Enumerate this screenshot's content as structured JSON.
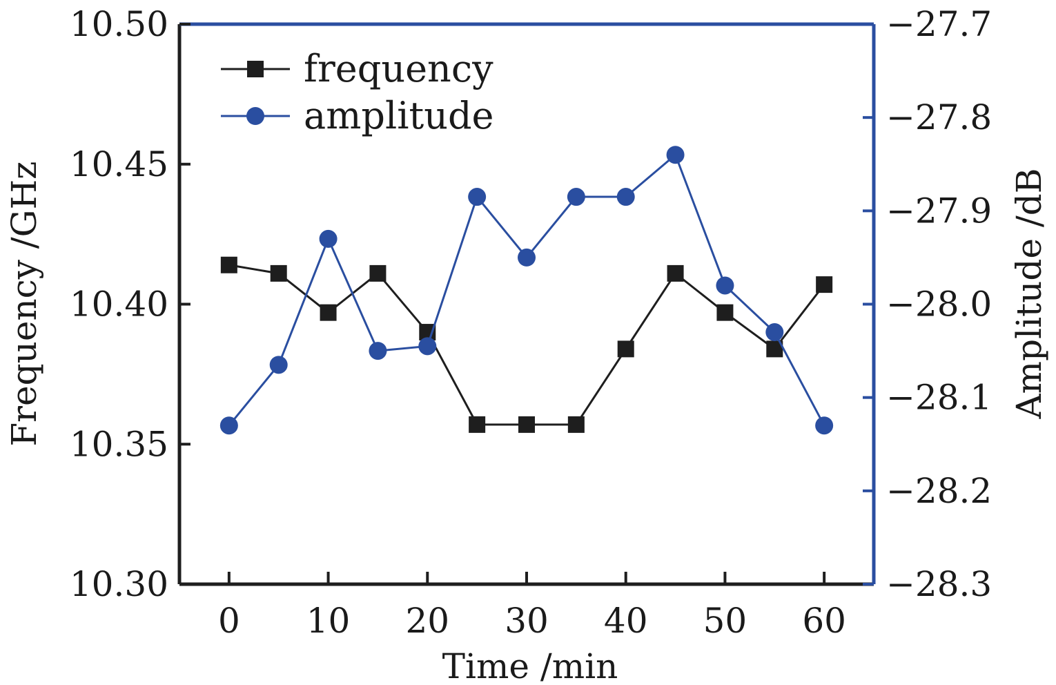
{
  "chart_data": {
    "type": "line",
    "title": "",
    "xlabel": "Time /min",
    "ylabel_left": "Frequency /GHz",
    "ylabel_right": "Amplitude /dB",
    "x": [
      0,
      5,
      10,
      15,
      20,
      25,
      30,
      35,
      40,
      45,
      50,
      55,
      60
    ],
    "x_ticks": [
      0,
      10,
      20,
      30,
      40,
      50,
      60
    ],
    "x_tick_labels": [
      "0",
      "10",
      "20",
      "30",
      "40",
      "50",
      "60"
    ],
    "xlim": [
      -5,
      65
    ],
    "ylim_left": [
      10.3,
      10.5
    ],
    "y_left_ticks": [
      10.3,
      10.35,
      10.4,
      10.45,
      10.5
    ],
    "y_left_tick_labels": [
      "10.30",
      "10.35",
      "10.40",
      "10.45",
      "10.50"
    ],
    "ylim_right": [
      -28.3,
      -27.7
    ],
    "y_right_ticks": [
      -27.7,
      -27.8,
      -27.9,
      -28.0,
      -28.1,
      -28.2,
      -28.3
    ],
    "y_right_tick_labels": [
      "−27.7",
      "−27.8",
      "−27.9",
      "−28.0",
      "−28.1",
      "−28.2",
      "−28.3"
    ],
    "grid": false,
    "legend_position": "top-left",
    "series": [
      {
        "name": "frequency",
        "axis": "left",
        "marker": "square",
        "color": "#1e1e1e",
        "values": [
          10.414,
          10.411,
          10.397,
          10.411,
          10.39,
          10.357,
          10.357,
          10.357,
          10.384,
          10.411,
          10.397,
          10.384,
          10.407
        ]
      },
      {
        "name": "amplitude",
        "axis": "right",
        "marker": "circle",
        "color": "#2a4ea0",
        "values": [
          -28.13,
          -28.065,
          -27.93,
          -28.05,
          -28.045,
          -27.885,
          -27.95,
          -27.885,
          -27.885,
          -27.84,
          -27.98,
          -28.03,
          -28.13
        ]
      }
    ]
  }
}
